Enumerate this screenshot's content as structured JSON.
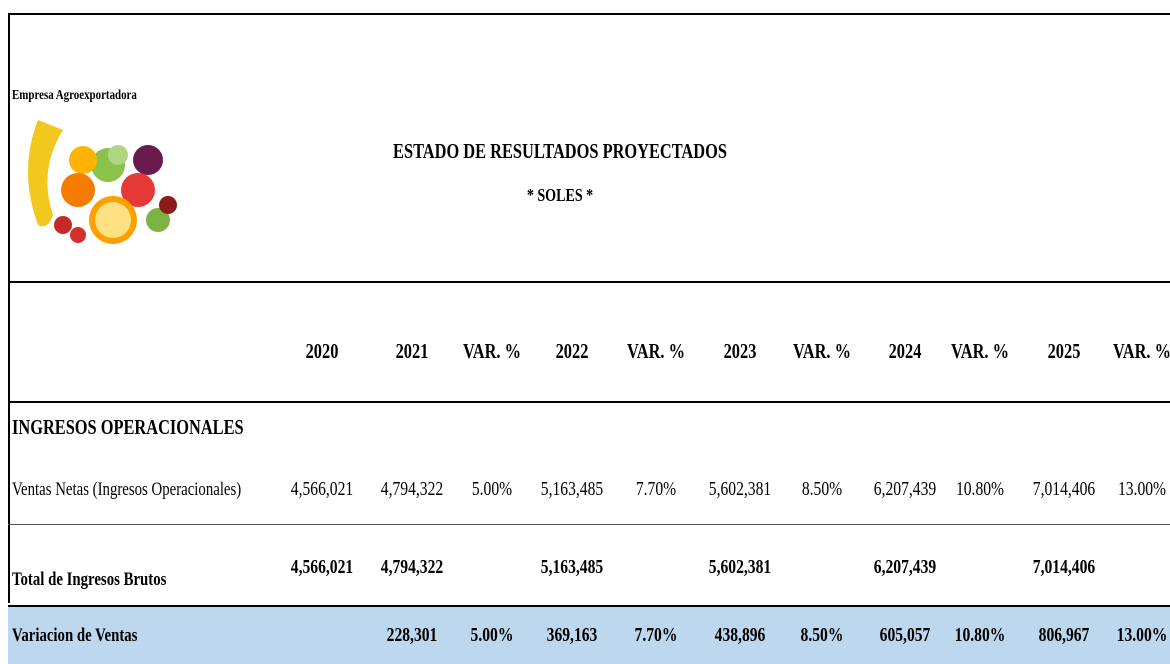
{
  "header": {
    "company": "Empresa Agroexportadora",
    "title": "ESTADO DE RESULTADOS PROYECTADOS",
    "subtitle": "* SOLES *"
  },
  "table": {
    "columns": [
      "2020",
      "2021",
      "VAR. %",
      "2022",
      "VAR. %",
      "2023",
      "VAR. %",
      "2024",
      "VAR. %",
      "2025",
      "VAR. %"
    ],
    "section": "INGRESOS OPERACIONALES",
    "rows": [
      {
        "label": "Ventas Netas (Ingresos Operacionales)",
        "cells": [
          "4,566,021",
          "4,794,322",
          "5.00%",
          "5,163,485",
          "7.70%",
          "5,602,381",
          "8.50%",
          "6,207,439",
          "10.80%",
          "7,014,406",
          "13.00%"
        ]
      },
      {
        "label": "Total de Ingresos Brutos",
        "cells": [
          "4,566,021",
          "4,794,322",
          null,
          "5,163,485",
          null,
          "5,602,381",
          null,
          "6,207,439",
          null,
          "7,014,406",
          null
        ]
      },
      {
        "label": "Variacion de Ventas",
        "cells": [
          null,
          "228,301",
          "5.00%",
          "369,163",
          "7.70%",
          "438,896",
          "8.50%",
          "605,057",
          "10.80%",
          "806,967",
          "13.00%"
        ]
      }
    ]
  }
}
